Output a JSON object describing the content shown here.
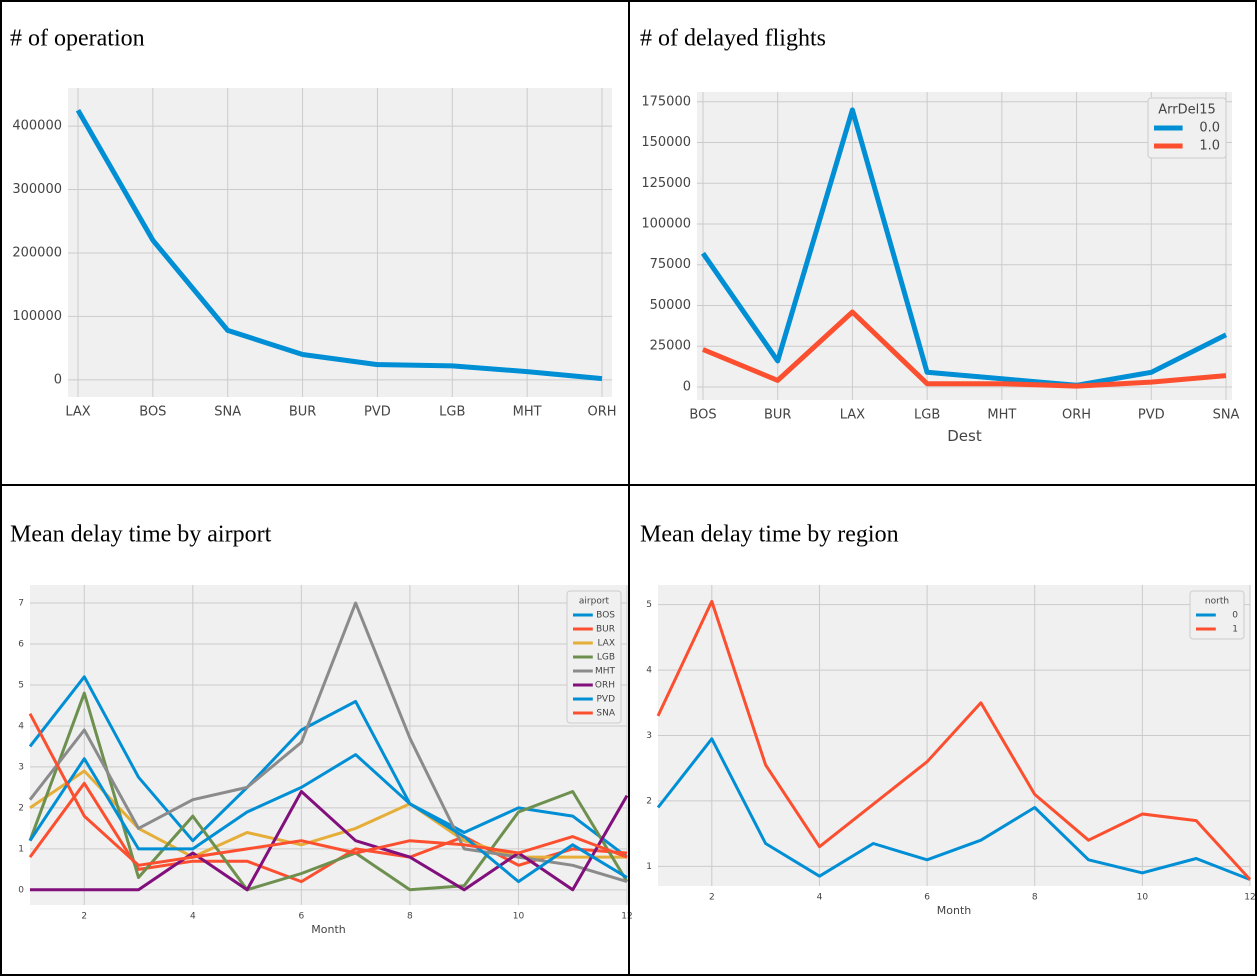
{
  "chart_data": [
    {
      "type": "line",
      "title": "# of operation",
      "categories": [
        "LAX",
        "BOS",
        "SNA",
        "BUR",
        "PVD",
        "LGB",
        "MHT",
        "ORH"
      ],
      "values": [
        425000,
        220000,
        78000,
        40000,
        24000,
        22000,
        13000,
        2000
      ],
      "color": "#008fd5",
      "ylim": [
        -27000,
        460000
      ],
      "yticks": [
        0,
        100000,
        200000,
        300000,
        400000
      ],
      "grid": true
    },
    {
      "type": "line",
      "title": "# of delayed flights",
      "categories": [
        "BOS",
        "BUR",
        "LAX",
        "LGB",
        "MHT",
        "ORH",
        "PVD",
        "SNA"
      ],
      "series": [
        {
          "name": "0.0",
          "color": "#008fd5",
          "values": [
            82000,
            16000,
            170000,
            9000,
            5000,
            1000,
            9000,
            32000
          ]
        },
        {
          "name": "1.0",
          "color": "#fc4f30",
          "values": [
            23000,
            4000,
            46000,
            2000,
            2000,
            500,
            3000,
            7000
          ]
        }
      ],
      "xlabel": "Dest",
      "legend_title": "ArrDel15",
      "legend": "upper right",
      "ylim": [
        -8000,
        181000
      ],
      "yticks": [
        0,
        25000,
        50000,
        75000,
        100000,
        125000,
        150000,
        175000
      ],
      "grid": true
    },
    {
      "type": "line",
      "title": "Mean delay time by airport",
      "x": [
        1,
        2,
        3,
        4,
        5,
        6,
        7,
        8,
        9,
        10,
        11,
        12
      ],
      "series": [
        {
          "name": "BOS",
          "color": "#008fd5",
          "values": [
            3.5,
            5.2,
            2.75,
            1.2,
            2.5,
            3.9,
            4.6,
            2.1,
            1.4,
            2.0,
            1.8,
            0.8
          ]
        },
        {
          "name": "BUR",
          "color": "#fc4f30",
          "values": [
            0.8,
            2.6,
            0.5,
            0.7,
            0.7,
            0.2,
            1.0,
            0.8,
            1.3,
            0.6,
            1.0,
            0.9
          ]
        },
        {
          "name": "LAX",
          "color": "#e5ae38",
          "values": [
            2.0,
            2.9,
            1.5,
            0.8,
            1.4,
            1.1,
            1.5,
            2.1,
            1.2,
            0.8,
            0.8,
            0.8
          ]
        },
        {
          "name": "LGB",
          "color": "#6d904f",
          "values": [
            1.2,
            4.8,
            0.3,
            1.8,
            0.0,
            0.4,
            0.9,
            0.0,
            0.1,
            1.9,
            2.4,
            0.2
          ]
        },
        {
          "name": "MHT",
          "color": "#8b8b8b",
          "values": [
            2.2,
            3.9,
            1.5,
            2.2,
            2.5,
            3.6,
            7.0,
            3.7,
            1.0,
            0.8,
            0.6,
            0.2
          ]
        },
        {
          "name": "ORH",
          "color": "#810f7c",
          "values": [
            0,
            0,
            0,
            0.9,
            0,
            2.4,
            1.2,
            0.8,
            0,
            0.9,
            0,
            2.3
          ]
        },
        {
          "name": "PVD",
          "color": "#008fd5",
          "values": [
            1.2,
            3.2,
            1.0,
            1.0,
            1.9,
            2.5,
            3.3,
            2.1,
            1.3,
            0.2,
            1.1,
            0.3
          ]
        },
        {
          "name": "SNA",
          "color": "#fc4f30",
          "values": [
            4.3,
            1.8,
            0.6,
            0.8,
            1.0,
            1.2,
            0.9,
            1.2,
            1.1,
            0.9,
            1.3,
            0.8
          ]
        }
      ],
      "xlabel": "Month",
      "legend_title": "airport",
      "legend": "upper right",
      "xlim": [
        1,
        12
      ],
      "xticks": [
        2,
        4,
        6,
        8,
        10,
        12
      ],
      "ylim": [
        -0.37,
        7.44
      ],
      "yticks": [
        0,
        1,
        2,
        3,
        4,
        5,
        6,
        7
      ],
      "grid": true
    },
    {
      "type": "line",
      "title": "Mean delay time by region",
      "x": [
        1,
        2,
        3,
        4,
        5,
        6,
        7,
        8,
        9,
        10,
        11,
        12
      ],
      "series": [
        {
          "name": "0",
          "color": "#008fd5",
          "values": [
            1.9,
            2.95,
            1.35,
            0.85,
            1.35,
            1.1,
            1.4,
            1.9,
            1.1,
            0.9,
            1.12,
            0.8
          ]
        },
        {
          "name": "1",
          "color": "#fc4f30",
          "values": [
            3.3,
            5.05,
            2.55,
            1.3,
            1.95,
            2.6,
            3.5,
            2.1,
            1.4,
            1.8,
            1.7,
            0.8
          ]
        }
      ],
      "xlabel": "Month",
      "legend_title": "north",
      "legend": "upper right",
      "xlim": [
        1,
        12
      ],
      "xticks": [
        2,
        4,
        6,
        8,
        10,
        12
      ],
      "ylim": [
        0.7,
        5.3
      ],
      "yticks": [
        1,
        2,
        3,
        4,
        5
      ],
      "grid": true
    }
  ]
}
